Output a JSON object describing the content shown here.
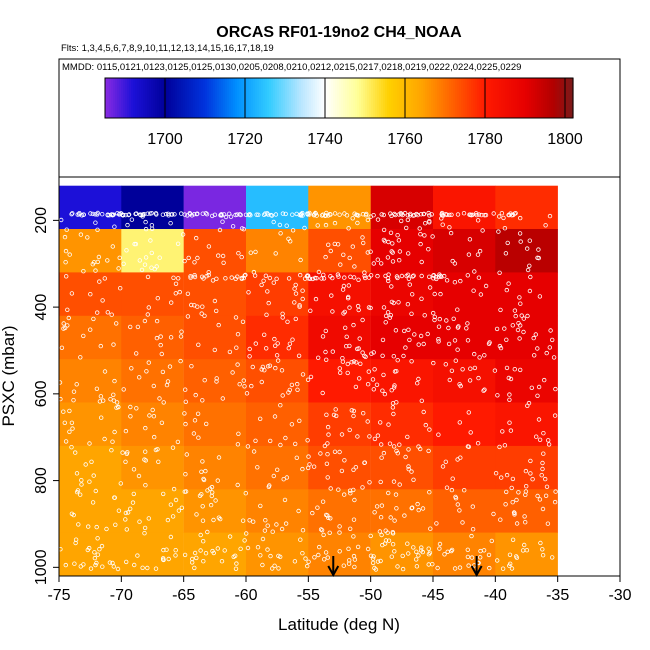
{
  "chart_data": {
    "type": "heatmap",
    "title": "ORCAS RF01-19no2 CH4_NOAA",
    "flights_text": "Flts: 1,3,4,5,6,7,8,9,10,11,12,13,14,15,16,17,18,19",
    "mmdd_text": "MMDD: 0115,0121,0123,0125,0125,0130,0205,0208,0210,0212,0215,0217,0218,0219,0222,0224,0225,0229",
    "xlabel": "Latitude (deg N)",
    "ylabel": "PSXC (mbar)",
    "xlim": [
      -75,
      -30
    ],
    "ylim": [
      1020,
      100
    ],
    "x_ticks": [
      -75,
      -70,
      -65,
      -60,
      -55,
      -50,
      -45,
      -40,
      -35,
      -30
    ],
    "y_ticks": [
      200,
      400,
      600,
      800,
      1000
    ],
    "colorbar": {
      "min": 1685,
      "max": 1802,
      "ticks": [
        1700,
        1720,
        1740,
        1760,
        1780,
        1800
      ],
      "stops": [
        {
          "v": 1685,
          "c": "#8a2be2"
        },
        {
          "v": 1692,
          "c": "#1c10d8"
        },
        {
          "v": 1700,
          "c": "#00009a"
        },
        {
          "v": 1710,
          "c": "#0033dd"
        },
        {
          "v": 1718,
          "c": "#0090ff"
        },
        {
          "v": 1726,
          "c": "#33ccff"
        },
        {
          "v": 1734,
          "c": "#b8e6ff"
        },
        {
          "v": 1740,
          "c": "#ffffff"
        },
        {
          "v": 1748,
          "c": "#ffff99"
        },
        {
          "v": 1756,
          "c": "#ffd000"
        },
        {
          "v": 1764,
          "c": "#ffa500"
        },
        {
          "v": 1772,
          "c": "#ff6000"
        },
        {
          "v": 1780,
          "c": "#ff1a00"
        },
        {
          "v": 1790,
          "c": "#e60000"
        },
        {
          "v": 1797,
          "c": "#b30000"
        },
        {
          "v": 1802,
          "c": "#7a1a1a"
        }
      ]
    },
    "arrows_latitude": [
      -53,
      -41.5
    ],
    "grid": {
      "lat_edges": [
        -75,
        -70,
        -65,
        -60,
        -55,
        -50,
        -45,
        -40,
        -35
      ],
      "p_edges": [
        100,
        120,
        220,
        320,
        420,
        520,
        620,
        720,
        820,
        920,
        1020
      ],
      "values": [
        [
          null,
          null,
          null,
          null,
          null,
          null,
          null,
          null
        ],
        [
          1692,
          1700,
          1686,
          1724,
          1766,
          1792,
          1782,
          1778
        ],
        [
          1766,
          1750,
          1774,
          1768,
          1774,
          1790,
          1792,
          1796
        ],
        [
          1774,
          1774,
          1774,
          1776,
          1784,
          1788,
          1790,
          1790
        ],
        [
          1770,
          1772,
          1774,
          1778,
          1786,
          1790,
          1790,
          1790
        ],
        [
          1768,
          1770,
          1772,
          1774,
          1780,
          1782,
          1784,
          1788
        ],
        [
          1766,
          1768,
          1770,
          1772,
          1776,
          1778,
          1780,
          1782
        ],
        [
          1764,
          1766,
          1768,
          1770,
          1774,
          1774,
          1776,
          1776
        ],
        [
          1764,
          1764,
          1766,
          1768,
          1770,
          1770,
          1772,
          1772
        ],
        [
          1764,
          1764,
          1764,
          1766,
          1768,
          1766,
          1768,
          1766
        ]
      ]
    }
  }
}
